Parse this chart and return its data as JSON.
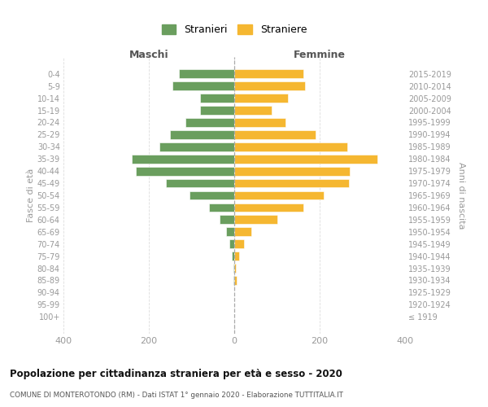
{
  "age_groups": [
    "100+",
    "95-99",
    "90-94",
    "85-89",
    "80-84",
    "75-79",
    "70-74",
    "65-69",
    "60-64",
    "55-59",
    "50-54",
    "45-49",
    "40-44",
    "35-39",
    "30-34",
    "25-29",
    "20-24",
    "15-19",
    "10-14",
    "5-9",
    "0-4"
  ],
  "birth_years": [
    "≤ 1919",
    "1920-1924",
    "1925-1929",
    "1930-1934",
    "1935-1939",
    "1940-1944",
    "1945-1949",
    "1950-1954",
    "1955-1959",
    "1960-1964",
    "1965-1969",
    "1970-1974",
    "1975-1979",
    "1980-1984",
    "1985-1989",
    "1990-1994",
    "1995-1999",
    "2000-2004",
    "2005-2009",
    "2010-2014",
    "2015-2019"
  ],
  "maschi": [
    0,
    0,
    0,
    1,
    2,
    5,
    12,
    20,
    35,
    60,
    105,
    160,
    230,
    240,
    175,
    150,
    115,
    80,
    80,
    145,
    130
  ],
  "femmine": [
    0,
    0,
    0,
    5,
    4,
    12,
    22,
    40,
    100,
    162,
    210,
    268,
    270,
    335,
    265,
    190,
    120,
    88,
    125,
    165,
    162
  ],
  "color_maschi": "#6a9e5e",
  "color_femmine": "#f5b731",
  "title": "Popolazione per cittadinanza straniera per età e sesso - 2020",
  "subtitle": "COMUNE DI MONTEROTONDO (RM) - Dati ISTAT 1° gennaio 2020 - Elaborazione TUTTITALIA.IT",
  "legend_maschi": "Stranieri",
  "legend_femmine": "Straniere",
  "label_maschi": "Maschi",
  "label_femmine": "Femmine",
  "ylabel_left": "Fasce di età",
  "ylabel_right": "Anni di nascita",
  "xlim": 400,
  "bg_color": "#ffffff",
  "grid_color": "#dddddd",
  "center_line_color": "#aaaaaa",
  "tick_color": "#999999",
  "title_color": "#111111",
  "subtitle_color": "#555555"
}
